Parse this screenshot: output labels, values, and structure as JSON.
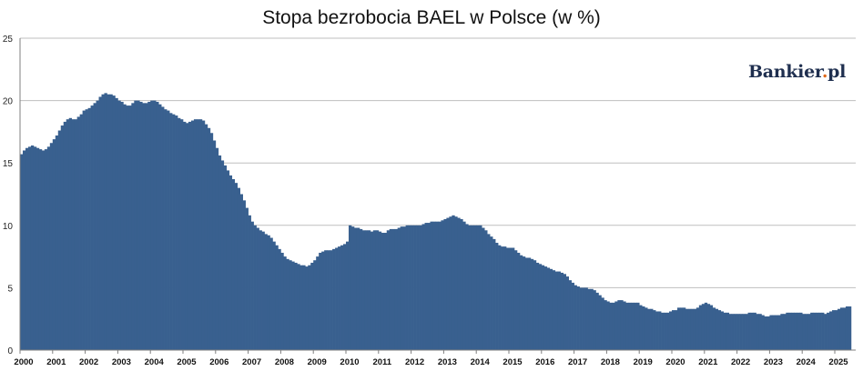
{
  "chart_data": {
    "type": "area",
    "title": "Stopa bezrobocia BAEL w Polsce (w %)",
    "watermark": "Bankier.pl",
    "xlabel": "",
    "ylabel": "",
    "ylim": [
      0,
      25
    ],
    "yticks": [
      0,
      5,
      10,
      15,
      20,
      25
    ],
    "xticks": [
      "2000",
      "2001",
      "2002",
      "2003",
      "2004",
      "2005",
      "2006",
      "2007",
      "2008",
      "2009",
      "2010",
      "2011",
      "2012",
      "2013",
      "2014",
      "2015",
      "2016",
      "2017",
      "2018",
      "2019",
      "2020",
      "2021",
      "2022",
      "2023",
      "2024",
      "2025"
    ],
    "grid": true,
    "color": "#39608f",
    "x_start": "2000-01",
    "x_end": "2025-06",
    "monthly_values": [
      15.7,
      16.0,
      16.2,
      16.3,
      16.4,
      16.3,
      16.2,
      16.1,
      16.0,
      16.1,
      16.3,
      16.6,
      16.9,
      17.2,
      17.6,
      18.0,
      18.3,
      18.5,
      18.6,
      18.5,
      18.5,
      18.7,
      18.9,
      19.2,
      19.3,
      19.4,
      19.6,
      19.8,
      20.0,
      20.3,
      20.5,
      20.6,
      20.5,
      20.5,
      20.4,
      20.2,
      20.0,
      19.9,
      19.7,
      19.6,
      19.6,
      19.8,
      20.0,
      20.0,
      19.9,
      19.8,
      19.8,
      19.9,
      20.0,
      20.0,
      19.9,
      19.7,
      19.5,
      19.3,
      19.2,
      19.0,
      18.9,
      18.8,
      18.6,
      18.5,
      18.3,
      18.2,
      18.3,
      18.4,
      18.5,
      18.5,
      18.5,
      18.4,
      18.1,
      17.8,
      17.4,
      16.8,
      16.2,
      15.6,
      15.2,
      14.8,
      14.4,
      14.0,
      13.7,
      13.4,
      13.0,
      12.5,
      12.0,
      11.4,
      10.8,
      10.3,
      10.0,
      9.8,
      9.6,
      9.5,
      9.3,
      9.2,
      9.0,
      8.7,
      8.4,
      8.1,
      7.8,
      7.5,
      7.3,
      7.2,
      7.1,
      7.0,
      6.9,
      6.8,
      6.8,
      6.7,
      6.8,
      7.0,
      7.2,
      7.5,
      7.8,
      7.9,
      8.0,
      8.0,
      8.0,
      8.1,
      8.2,
      8.3,
      8.4,
      8.5,
      8.7,
      10.0,
      9.9,
      9.8,
      9.8,
      9.7,
      9.6,
      9.6,
      9.6,
      9.5,
      9.6,
      9.6,
      9.5,
      9.4,
      9.4,
      9.6,
      9.7,
      9.7,
      9.7,
      9.8,
      9.9,
      9.9,
      10.0,
      10.0,
      10.0,
      10.0,
      10.0,
      10.0,
      10.1,
      10.2,
      10.2,
      10.3,
      10.3,
      10.3,
      10.3,
      10.4,
      10.5,
      10.6,
      10.7,
      10.8,
      10.7,
      10.6,
      10.5,
      10.3,
      10.1,
      10.0,
      10.0,
      10.0,
      10.0,
      10.0,
      9.8,
      9.6,
      9.3,
      9.1,
      8.9,
      8.6,
      8.4,
      8.3,
      8.3,
      8.2,
      8.2,
      8.2,
      8.0,
      7.8,
      7.6,
      7.5,
      7.4,
      7.4,
      7.3,
      7.2,
      7.0,
      6.9,
      6.8,
      6.7,
      6.6,
      6.5,
      6.4,
      6.3,
      6.3,
      6.2,
      6.1,
      5.9,
      5.6,
      5.4,
      5.2,
      5.1,
      5.0,
      5.0,
      5.0,
      4.9,
      4.9,
      4.8,
      4.6,
      4.4,
      4.2,
      4.0,
      3.9,
      3.8,
      3.8,
      3.9,
      4.0,
      4.0,
      3.9,
      3.8,
      3.8,
      3.8,
      3.8,
      3.8,
      3.6,
      3.5,
      3.4,
      3.3,
      3.3,
      3.2,
      3.1,
      3.1,
      3.0,
      3.0,
      3.0,
      3.1,
      3.2,
      3.2,
      3.4,
      3.4,
      3.4,
      3.3,
      3.3,
      3.3,
      3.3,
      3.4,
      3.6,
      3.7,
      3.8,
      3.7,
      3.6,
      3.4,
      3.3,
      3.2,
      3.1,
      3.0,
      3.0,
      2.9,
      2.9,
      2.9,
      2.9,
      2.9,
      2.9,
      2.9,
      3.0,
      3.0,
      3.0,
      2.9,
      2.9,
      2.8,
      2.7,
      2.7,
      2.8,
      2.8,
      2.8,
      2.8,
      2.9,
      2.9,
      3.0,
      3.0,
      3.0,
      3.0,
      3.0,
      3.0,
      2.9,
      2.9,
      2.9,
      3.0,
      3.0,
      3.0,
      3.0,
      3.0,
      2.9,
      3.0,
      3.1,
      3.2,
      3.2,
      3.3,
      3.4,
      3.4,
      3.5,
      3.5
    ]
  }
}
